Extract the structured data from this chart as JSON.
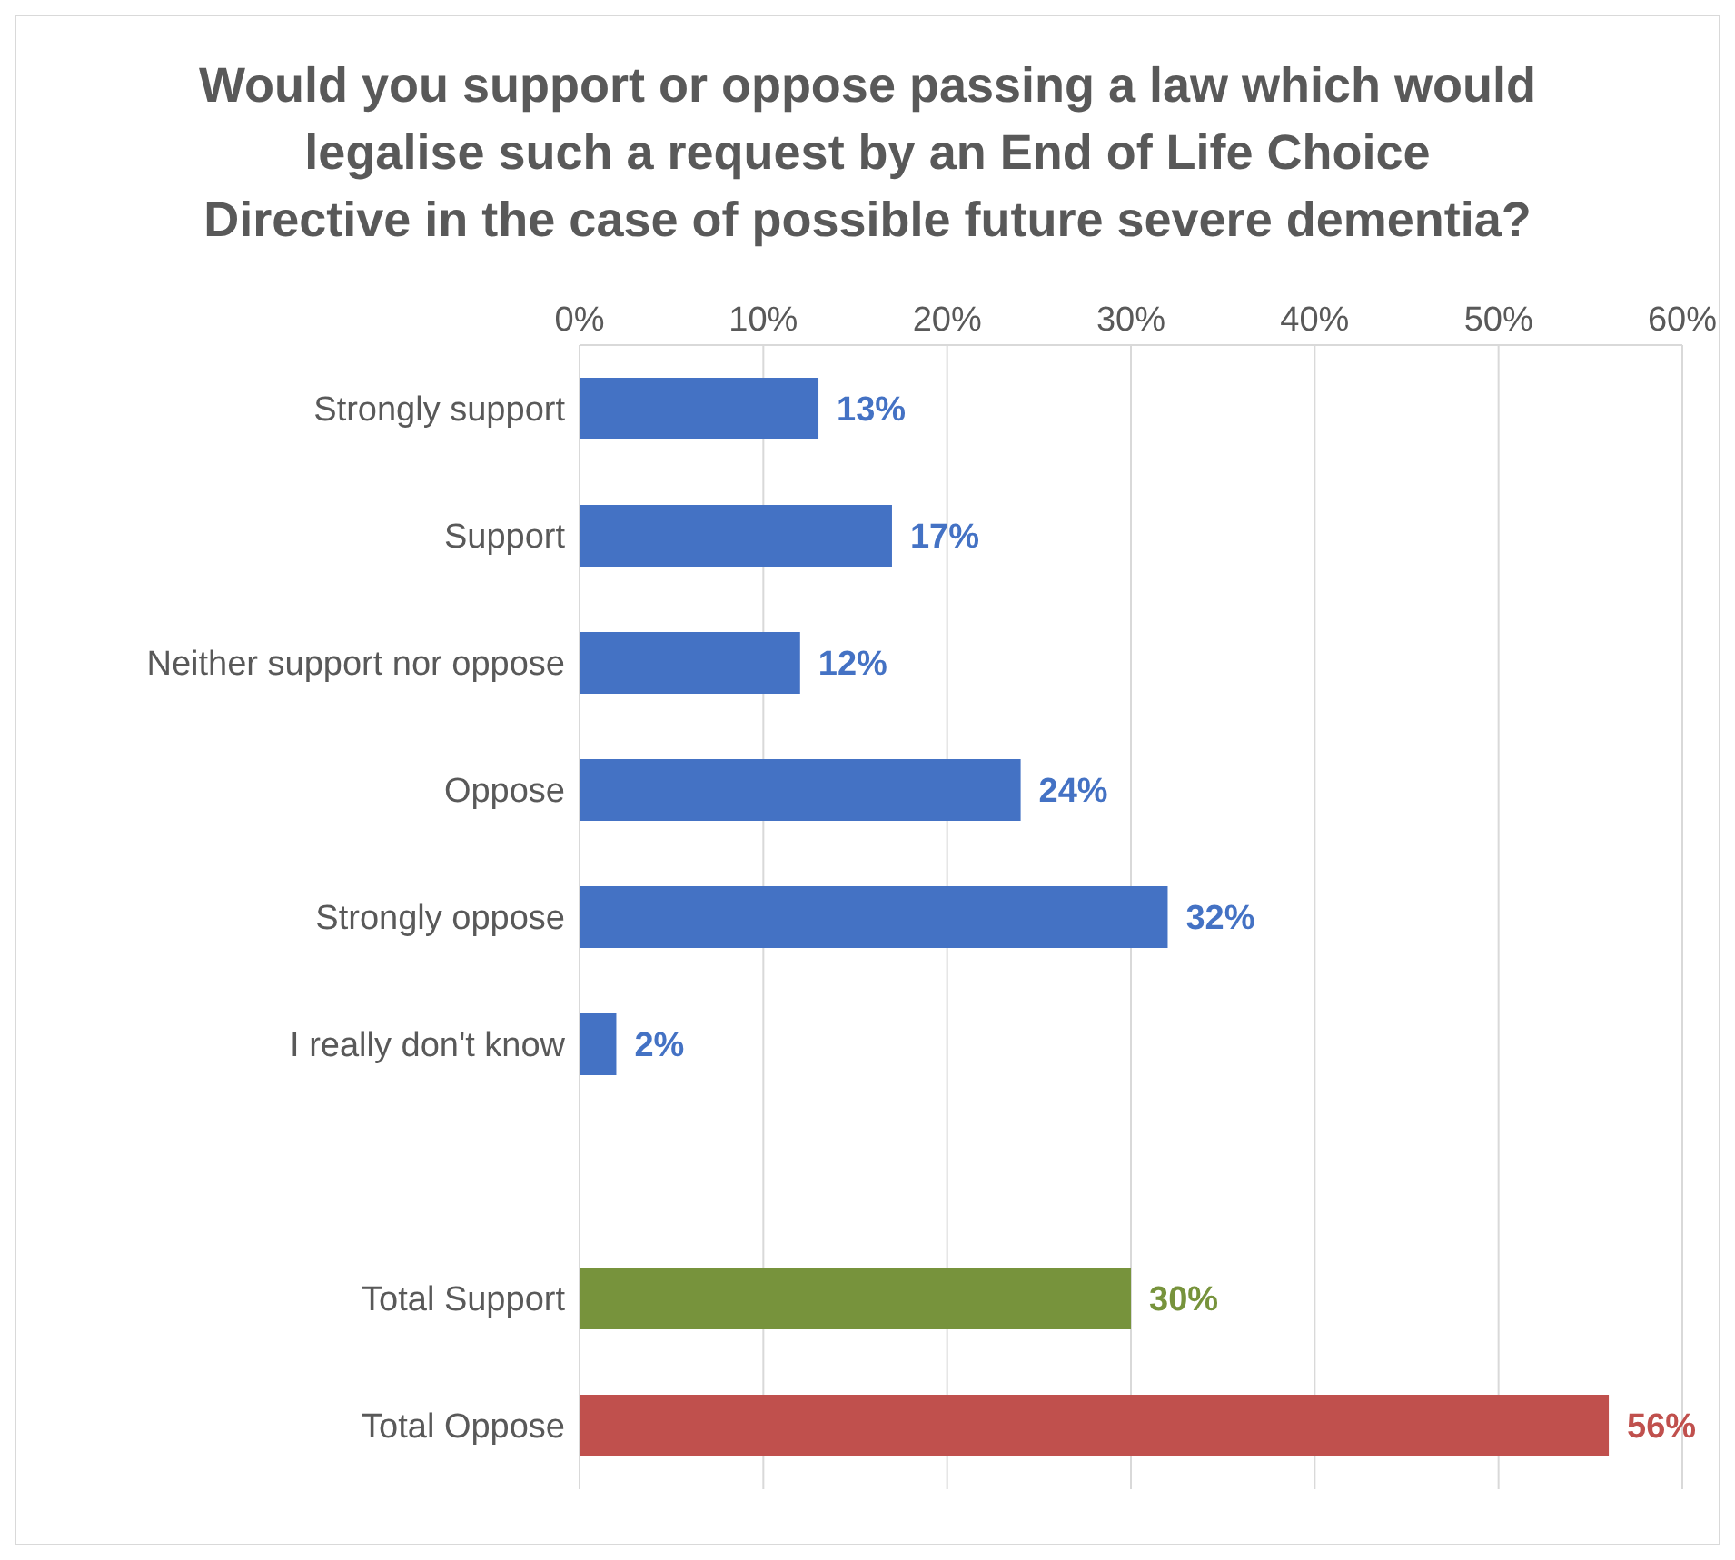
{
  "chart_data": {
    "type": "bar",
    "orientation": "horizontal",
    "title": "Would you support or oppose passing a law which would legalise such a request by an End of Life Choice Directive in the case of possible future severe dementia?",
    "categories": [
      "Strongly support",
      "Support",
      "Neither support nor oppose",
      "Oppose",
      "Strongly oppose",
      "I really don't know",
      null,
      "Total Support",
      "Total Oppose"
    ],
    "values": [
      13,
      17,
      12,
      24,
      32,
      2,
      null,
      30,
      56
    ],
    "colors": [
      "#4472c4",
      "#4472c4",
      "#4472c4",
      "#4472c4",
      "#4472c4",
      "#4472c4",
      "#4472c4",
      "#77933c",
      "#c0504d"
    ],
    "value_labels": [
      "13%",
      "17%",
      "12%",
      "24%",
      "32%",
      "2%",
      null,
      "30%",
      "56%"
    ],
    "xlim": [
      0,
      60
    ],
    "xticks": [
      {
        "value": 0,
        "label": "0%"
      },
      {
        "value": 10,
        "label": "10%"
      },
      {
        "value": 20,
        "label": "20%"
      },
      {
        "value": 30,
        "label": "30%"
      },
      {
        "value": 40,
        "label": "40%"
      },
      {
        "value": 50,
        "label": "50%"
      },
      {
        "value": 60,
        "label": "60%"
      }
    ],
    "grid": "x"
  }
}
